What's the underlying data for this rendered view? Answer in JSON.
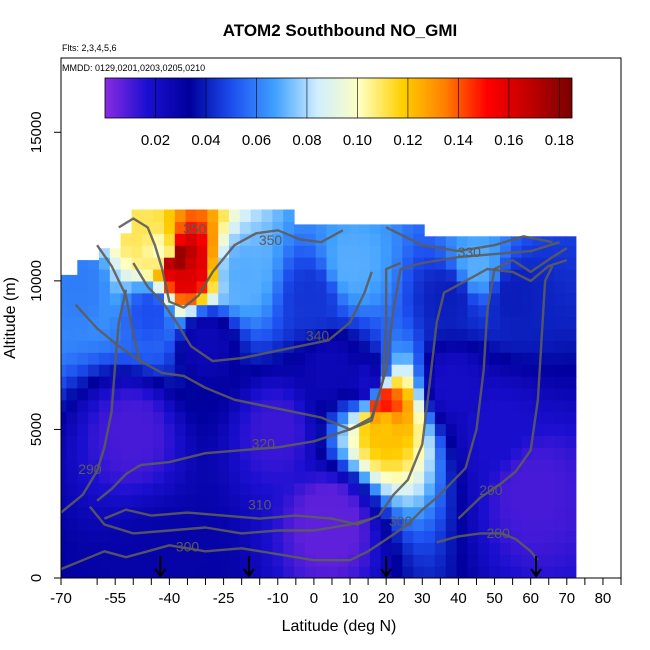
{
  "chart_data": {
    "type": "heatmap",
    "title": "ATOM2 Southbound NO_GMI",
    "notes": [
      "Flts: 2,3,4,5,6",
      "MMDD: 0129,0201,0203,0205,0210"
    ],
    "xlabel": "Latitude (deg N)",
    "ylabel": "Altitude (m)",
    "xlim": [
      -70,
      85
    ],
    "ylim": [
      0,
      17500
    ],
    "x_ticks": [
      -70,
      -55,
      -40,
      -25,
      -10,
      0,
      10,
      20,
      30,
      40,
      50,
      60,
      70,
      80
    ],
    "x_tick_labels": [
      "-70",
      "-55",
      "-40",
      "-25",
      "-10",
      "0",
      "10",
      "20",
      "30",
      "40",
      "50",
      "60",
      "70",
      "80"
    ],
    "x_minor_ticks": [
      -60,
      -50,
      -45,
      -35,
      -30,
      -20,
      -15,
      -5,
      5,
      15,
      25,
      35,
      45,
      55,
      65,
      75,
      85
    ],
    "y_ticks": [
      0,
      5000,
      10000,
      15000
    ],
    "y_tick_labels": [
      "0",
      "5000",
      "10000",
      "15000"
    ],
    "colorbar": {
      "range": [
        0.0,
        0.185
      ],
      "ticks": [
        0.02,
        0.04,
        0.06,
        0.08,
        0.1,
        0.12,
        0.14,
        0.16,
        0.18
      ],
      "tick_labels": [
        "0.02",
        "0.04",
        "0.06",
        "0.08",
        "0.10",
        "0.12",
        "0.14",
        "0.16",
        "0.18"
      ],
      "colors": [
        "#8a2be2",
        "#1a0fd0",
        "#00009c",
        "#1d4ff0",
        "#3fa0ff",
        "#cfeeff",
        "#ffffc0",
        "#ffd000",
        "#ff8000",
        "#ff0000",
        "#c00000",
        "#7a0000"
      ]
    },
    "grid": false,
    "flight_markers_lat": [
      -42.5,
      -18,
      20,
      61.5
    ],
    "contour_levels": [
      {
        "label": "350",
        "lat": -33,
        "alt": 11600
      },
      {
        "label": "350",
        "lat": -12,
        "alt": 11200
      },
      {
        "label": "330",
        "lat": 43,
        "alt": 10800
      },
      {
        "label": "340",
        "lat": 1,
        "alt": 8000
      },
      {
        "label": "320",
        "lat": -14,
        "alt": 4350
      },
      {
        "label": "310",
        "lat": -15,
        "alt": 2300
      },
      {
        "label": "300",
        "lat": -35,
        "alt": 900
      },
      {
        "label": "300",
        "lat": 24,
        "alt": 1750
      },
      {
        "label": "290",
        "lat": 49,
        "alt": 2800
      },
      {
        "label": "280",
        "lat": 51,
        "alt": 1350
      },
      {
        "label": "290",
        "lat": -62,
        "alt": 3500
      }
    ],
    "features": [
      {
        "lat": -37.5,
        "alt": 10700,
        "value": 0.18
      },
      {
        "lat": -36,
        "alt": 10300,
        "value": 0.16
      },
      {
        "lat": -42,
        "alt": 11000,
        "value": 0.1
      },
      {
        "lat": -48,
        "alt": 12000,
        "value": 0.11
      },
      {
        "lat": 19.5,
        "alt": 5800,
        "value": 0.15
      },
      {
        "lat": 19.5,
        "alt": 5200,
        "value": 0.12
      },
      {
        "lat": -20,
        "alt": 10300,
        "value": 0.07
      },
      {
        "lat": 10,
        "alt": 10500,
        "value": 0.07
      },
      {
        "lat": 45,
        "alt": 10500,
        "value": 0.07
      },
      {
        "lat": -65,
        "alt": 10000,
        "value": 0.06
      },
      {
        "lat": -45,
        "alt": 9000,
        "value": 0.05
      },
      {
        "lat": 0,
        "alt": 9500,
        "value": 0.045
      },
      {
        "lat": 38,
        "alt": 9500,
        "value": 0.04
      },
      {
        "lat": 55,
        "alt": 9500,
        "value": 0.04
      },
      {
        "lat": -30,
        "alt": 8000,
        "value": 0.025
      },
      {
        "lat": 5,
        "alt": 7000,
        "value": 0.025
      },
      {
        "lat": 15,
        "alt": 6500,
        "value": 0.02
      },
      {
        "lat": 38,
        "alt": 6500,
        "value": 0.02
      },
      {
        "lat": 50,
        "alt": 5000,
        "value": 0.018
      },
      {
        "lat": -10,
        "alt": 5000,
        "value": 0.012
      },
      {
        "lat": -50,
        "alt": 5000,
        "value": 0.01
      },
      {
        "lat": 60,
        "alt": 3000,
        "value": 0.01
      },
      {
        "lat": 5,
        "alt": 2000,
        "value": 0.005
      },
      {
        "lat": -42,
        "alt": 250,
        "value": 0.03
      }
    ],
    "profiles": [
      {
        "lat": -70,
        "top": 10200,
        "base": 0.008
      },
      {
        "lat": -67,
        "top": 10200,
        "base": 0.008
      },
      {
        "lat": -64,
        "top": 10700,
        "base": 0.008
      },
      {
        "lat": -61,
        "top": 10700,
        "base": 0.008
      },
      {
        "lat": -58,
        "top": 11100,
        "base": 0.008
      },
      {
        "lat": -55,
        "top": 11100,
        "base": 0.008
      },
      {
        "lat": -52,
        "top": 11600,
        "base": 0.008
      },
      {
        "lat": -49,
        "top": 12400,
        "base": 0.008
      },
      {
        "lat": -46,
        "top": 12400,
        "base": 0.008
      },
      {
        "lat": -43,
        "top": 12400,
        "base": 0.008
      },
      {
        "lat": -40,
        "top": 12400,
        "base": 0.008
      },
      {
        "lat": -37,
        "top": 12400,
        "base": 0.008
      },
      {
        "lat": -34,
        "top": 12400,
        "base": 0.008
      },
      {
        "lat": -31,
        "top": 12400,
        "base": 0.008
      },
      {
        "lat": -28,
        "top": 12400,
        "base": 0.008
      },
      {
        "lat": -25,
        "top": 12400,
        "base": 0.008
      },
      {
        "lat": -22,
        "top": 12400,
        "base": 0.008
      },
      {
        "lat": -19,
        "top": 12400,
        "base": 0.008
      },
      {
        "lat": -16,
        "top": 12400,
        "base": 0.008
      },
      {
        "lat": -13,
        "top": 12400,
        "base": 0.008
      },
      {
        "lat": -10,
        "top": 12400,
        "base": 0.008
      },
      {
        "lat": -7,
        "top": 12400,
        "base": 0.008
      },
      {
        "lat": -4,
        "top": 11900,
        "base": 0.008
      },
      {
        "lat": -1,
        "top": 11900,
        "base": 0.008
      },
      {
        "lat": 2,
        "top": 11900,
        "base": 0.008
      },
      {
        "lat": 5,
        "top": 11900,
        "base": 0.008
      },
      {
        "lat": 8,
        "top": 11900,
        "base": 0.008
      },
      {
        "lat": 11,
        "top": 11900,
        "base": 0.008
      },
      {
        "lat": 14,
        "top": 11900,
        "base": 0.008
      },
      {
        "lat": 17,
        "top": 11900,
        "base": 0.008
      },
      {
        "lat": 20,
        "top": 11900,
        "base": 0.008
      },
      {
        "lat": 23,
        "top": 11900,
        "base": 0.008
      },
      {
        "lat": 26,
        "top": 11900,
        "base": 0.008
      },
      {
        "lat": 29,
        "top": 11900,
        "base": 0.008
      },
      {
        "lat": 32,
        "top": 11500,
        "base": 0.008
      },
      {
        "lat": 35,
        "top": 11500,
        "base": 0.008
      },
      {
        "lat": 38,
        "top": 11500,
        "base": 0.008
      },
      {
        "lat": 41,
        "top": 11500,
        "base": 0.008
      },
      {
        "lat": 44,
        "top": 11500,
        "base": 0.008
      },
      {
        "lat": 47,
        "top": 11500,
        "base": 0.008
      },
      {
        "lat": 50,
        "top": 11500,
        "base": 0.008
      },
      {
        "lat": 53,
        "top": 11500,
        "base": 0.008
      },
      {
        "lat": 56,
        "top": 11500,
        "base": 0.008
      },
      {
        "lat": 59,
        "top": 11500,
        "base": 0.008
      },
      {
        "lat": 62,
        "top": 11500,
        "base": 0.008
      },
      {
        "lat": 65,
        "top": 11500,
        "base": 0.008
      },
      {
        "lat": 68,
        "top": 11500,
        "base": 0.008
      },
      {
        "lat": 71,
        "top": 11500,
        "base": 0.008
      }
    ]
  }
}
